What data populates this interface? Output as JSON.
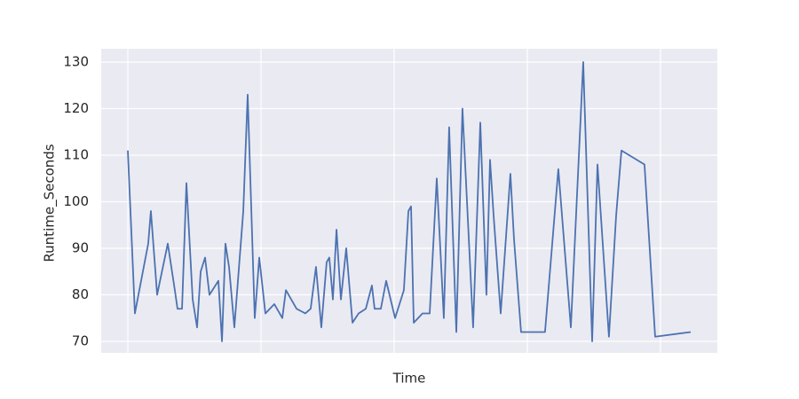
{
  "chart_data": {
    "type": "line",
    "x_label": "Time",
    "y_label": "Runtime_Seconds",
    "xlim": [
      -0.2,
      4.427
    ],
    "ylim": [
      67.52,
      132.86
    ],
    "xticks": [
      0,
      1,
      2,
      3,
      4
    ],
    "xtick_labels_shown": false,
    "yticks": [
      70,
      80,
      90,
      100,
      110,
      120,
      130
    ],
    "grid": true,
    "series": [
      {
        "color": "#4c72b0",
        "x": [
          0,
          0.053,
          0.153,
          0.173,
          0.22,
          0.3,
          0.353,
          0.373,
          0.407,
          0.44,
          0.487,
          0.52,
          0.547,
          0.58,
          0.613,
          0.68,
          0.707,
          0.733,
          0.76,
          0.8,
          0.867,
          0.9,
          0.953,
          0.987,
          1.033,
          1.1,
          1.16,
          1.187,
          1.267,
          1.333,
          1.373,
          1.413,
          1.453,
          1.493,
          1.513,
          1.54,
          1.567,
          1.6,
          1.64,
          1.687,
          1.733,
          1.787,
          1.833,
          1.853,
          1.9,
          1.94,
          2.007,
          2.073,
          2.107,
          2.127,
          2.147,
          2.213,
          2.267,
          2.32,
          2.373,
          2.413,
          2.467,
          2.513,
          2.593,
          2.647,
          2.693,
          2.72,
          2.747,
          2.8,
          2.873,
          2.9,
          2.953,
          3.133,
          3.233,
          3.327,
          3.42,
          3.487,
          3.527,
          3.613,
          3.667,
          3.707,
          3.88,
          3.96,
          4.227
        ],
        "values": [
          111,
          76,
          91,
          98,
          80,
          91,
          81,
          77,
          77,
          104,
          79,
          73,
          85,
          88,
          80,
          83,
          70,
          91,
          86,
          73,
          98,
          123,
          75,
          88,
          76,
          78,
          75,
          81,
          77,
          76,
          77,
          86,
          73,
          87,
          88,
          79,
          94,
          79,
          90,
          74,
          76,
          77,
          82,
          77,
          77,
          83,
          75,
          81,
          98,
          99,
          74,
          76,
          76,
          105,
          75,
          116,
          72,
          120,
          73,
          117,
          80,
          109,
          97,
          76,
          106,
          92,
          72,
          72,
          107,
          73,
          130,
          70,
          108,
          71,
          97,
          111,
          108,
          71,
          72
        ]
      }
    ]
  }
}
